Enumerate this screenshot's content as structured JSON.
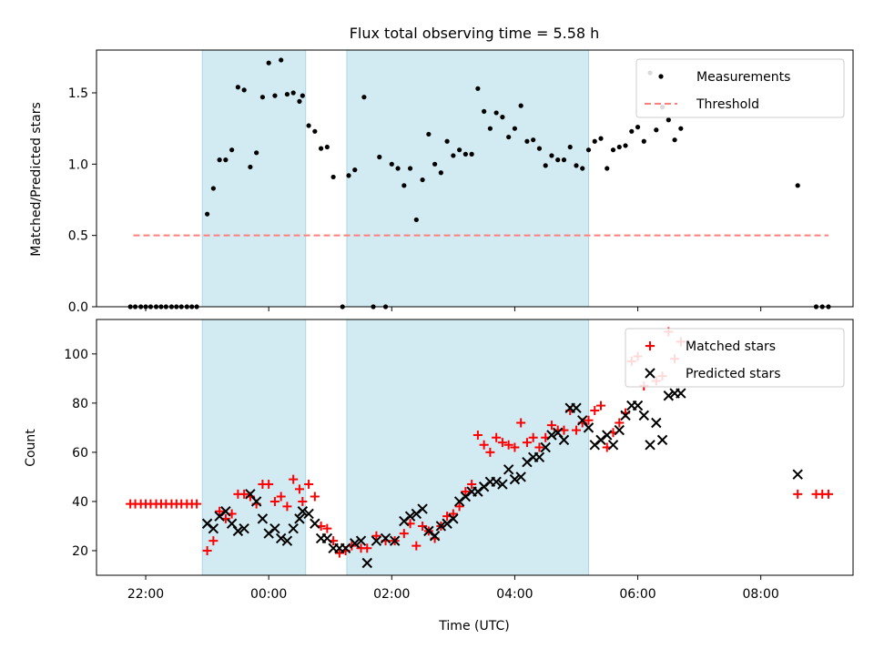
{
  "title": "Flux total observing time = 5.58 h",
  "xlabel": "Time (UTC)",
  "x_tick_labels": [
    "22:00",
    "00:00",
    "02:00",
    "04:00",
    "06:00",
    "08:00"
  ],
  "colors": {
    "band": "#add8e6",
    "measurement": "#000000",
    "threshold": "#ff7f7f",
    "matched": "#ff0000",
    "predicted": "#000000"
  },
  "chart_data": [
    {
      "type": "scatter",
      "ylabel": "Matched/Predicted stars",
      "x_unit": "hours since 22:00 UTC",
      "xlim": [
        -0.8,
        11.5
      ],
      "ylim": [
        0,
        1.8
      ],
      "yticks": [
        0.0,
        0.5,
        1.0,
        1.5
      ],
      "ytick_labels": [
        "0.0",
        "0.5",
        "1.0",
        "1.5"
      ],
      "bands": [
        [
          0.92,
          2.6
        ],
        [
          3.27,
          7.2
        ]
      ],
      "legend": [
        "Measurements",
        "Threshold"
      ],
      "legend_position": "top-right",
      "threshold": {
        "name": "Threshold",
        "value": 0.5,
        "x_range": [
          -0.2,
          11.1
        ]
      },
      "series": [
        {
          "name": "Measurements",
          "marker": "dot",
          "points": [
            [
              -0.25,
              0
            ],
            [
              -0.17,
              0
            ],
            [
              -0.08,
              0
            ],
            [
              0.0,
              0
            ],
            [
              0.08,
              0
            ],
            [
              0.17,
              0
            ],
            [
              0.25,
              0
            ],
            [
              0.33,
              0
            ],
            [
              0.42,
              0
            ],
            [
              0.5,
              0
            ],
            [
              0.58,
              0
            ],
            [
              0.67,
              0
            ],
            [
              0.75,
              0
            ],
            [
              0.83,
              0
            ],
            [
              1.0,
              0.65
            ],
            [
              1.1,
              0.83
            ],
            [
              1.2,
              1.03
            ],
            [
              1.3,
              1.03
            ],
            [
              1.4,
              1.1
            ],
            [
              1.5,
              1.54
            ],
            [
              1.6,
              1.52
            ],
            [
              1.7,
              0.98
            ],
            [
              1.8,
              1.08
            ],
            [
              1.9,
              1.47
            ],
            [
              2.0,
              1.71
            ],
            [
              2.1,
              1.48
            ],
            [
              2.2,
              1.73
            ],
            [
              2.3,
              1.49
            ],
            [
              2.4,
              1.5
            ],
            [
              2.5,
              1.44
            ],
            [
              2.55,
              1.48
            ],
            [
              2.65,
              1.27
            ],
            [
              2.75,
              1.23
            ],
            [
              2.85,
              1.11
            ],
            [
              2.95,
              1.12
            ],
            [
              3.05,
              0.91
            ],
            [
              3.2,
              0.0
            ],
            [
              3.3,
              0.92
            ],
            [
              3.4,
              0.96
            ],
            [
              3.55,
              1.47
            ],
            [
              3.7,
              0.0
            ],
            [
              3.8,
              1.05
            ],
            [
              3.9,
              0.0
            ],
            [
              4.0,
              1.0
            ],
            [
              4.1,
              0.97
            ],
            [
              4.2,
              0.85
            ],
            [
              4.3,
              0.97
            ],
            [
              4.4,
              0.61
            ],
            [
              4.5,
              0.89
            ],
            [
              4.6,
              1.21
            ],
            [
              4.7,
              1.0
            ],
            [
              4.8,
              0.94
            ],
            [
              4.9,
              1.16
            ],
            [
              5.0,
              1.06
            ],
            [
              5.1,
              1.1
            ],
            [
              5.2,
              1.07
            ],
            [
              5.3,
              1.07
            ],
            [
              5.4,
              1.53
            ],
            [
              5.5,
              1.37
            ],
            [
              5.6,
              1.25
            ],
            [
              5.7,
              1.36
            ],
            [
              5.8,
              1.33
            ],
            [
              5.9,
              1.19
            ],
            [
              6.0,
              1.25
            ],
            [
              6.1,
              1.41
            ],
            [
              6.2,
              1.16
            ],
            [
              6.3,
              1.17
            ],
            [
              6.4,
              1.11
            ],
            [
              6.5,
              0.99
            ],
            [
              6.6,
              1.06
            ],
            [
              6.7,
              1.03
            ],
            [
              6.8,
              1.03
            ],
            [
              6.9,
              1.12
            ],
            [
              7.0,
              0.99
            ],
            [
              7.1,
              0.97
            ],
            [
              7.2,
              1.1
            ],
            [
              7.3,
              1.16
            ],
            [
              7.4,
              1.18
            ],
            [
              7.5,
              0.97
            ],
            [
              7.6,
              1.1
            ],
            [
              7.7,
              1.12
            ],
            [
              7.8,
              1.13
            ],
            [
              7.9,
              1.23
            ],
            [
              8.0,
              1.26
            ],
            [
              8.1,
              1.16
            ],
            [
              8.2,
              1.64
            ],
            [
              8.3,
              1.24
            ],
            [
              8.4,
              1.4
            ],
            [
              8.5,
              1.31
            ],
            [
              8.6,
              1.17
            ],
            [
              8.7,
              1.25
            ],
            [
              10.6,
              0.85
            ],
            [
              10.9,
              0.0
            ],
            [
              11.0,
              0.0
            ],
            [
              11.1,
              0.0
            ]
          ]
        }
      ]
    },
    {
      "type": "scatter",
      "ylabel": "Count",
      "x_unit": "hours since 22:00 UTC",
      "xlim": [
        -0.8,
        11.5
      ],
      "ylim": [
        10,
        114
      ],
      "yticks": [
        20,
        40,
        60,
        80,
        100
      ],
      "ytick_labels": [
        "20",
        "40",
        "60",
        "80",
        "100"
      ],
      "bands": [
        [
          0.92,
          2.6
        ],
        [
          3.27,
          7.2
        ]
      ],
      "legend": [
        "Matched stars",
        "Predicted stars"
      ],
      "legend_position": "top-right",
      "series": [
        {
          "name": "Matched stars",
          "marker": "plus",
          "points": [
            [
              -0.25,
              39
            ],
            [
              -0.17,
              39
            ],
            [
              -0.08,
              39
            ],
            [
              0.0,
              39
            ],
            [
              0.08,
              39
            ],
            [
              0.17,
              39
            ],
            [
              0.25,
              39
            ],
            [
              0.33,
              39
            ],
            [
              0.42,
              39
            ],
            [
              0.5,
              39
            ],
            [
              0.58,
              39
            ],
            [
              0.67,
              39
            ],
            [
              0.75,
              39
            ],
            [
              0.83,
              39
            ],
            [
              1.0,
              20
            ],
            [
              1.1,
              24
            ],
            [
              1.2,
              36
            ],
            [
              1.3,
              33
            ],
            [
              1.4,
              35
            ],
            [
              1.5,
              43
            ],
            [
              1.6,
              43
            ],
            [
              1.7,
              42
            ],
            [
              1.8,
              39
            ],
            [
              1.9,
              47
            ],
            [
              2.0,
              47
            ],
            [
              2.1,
              40
            ],
            [
              2.2,
              42
            ],
            [
              2.3,
              38
            ],
            [
              2.4,
              49
            ],
            [
              2.5,
              45
            ],
            [
              2.55,
              40
            ],
            [
              2.65,
              47
            ],
            [
              2.75,
              42
            ],
            [
              2.85,
              30
            ],
            [
              2.95,
              29
            ],
            [
              3.05,
              24
            ],
            [
              3.15,
              19
            ],
            [
              3.25,
              20
            ],
            [
              3.35,
              22
            ],
            [
              3.5,
              21
            ],
            [
              3.6,
              21
            ],
            [
              3.75,
              26
            ],
            [
              3.9,
              24
            ],
            [
              4.05,
              24
            ],
            [
              4.2,
              27
            ],
            [
              4.3,
              31
            ],
            [
              4.4,
              22
            ],
            [
              4.5,
              30
            ],
            [
              4.6,
              28
            ],
            [
              4.7,
              25
            ],
            [
              4.8,
              30
            ],
            [
              4.9,
              34
            ],
            [
              5.0,
              35
            ],
            [
              5.1,
              38
            ],
            [
              5.2,
              44
            ],
            [
              5.3,
              47
            ],
            [
              5.4,
              67
            ],
            [
              5.5,
              63
            ],
            [
              5.6,
              60
            ],
            [
              5.7,
              66
            ],
            [
              5.8,
              64
            ],
            [
              5.9,
              63
            ],
            [
              6.0,
              62
            ],
            [
              6.1,
              72
            ],
            [
              6.2,
              64
            ],
            [
              6.3,
              66
            ],
            [
              6.4,
              62
            ],
            [
              6.5,
              66
            ],
            [
              6.6,
              71
            ],
            [
              6.7,
              69
            ],
            [
              6.8,
              69
            ],
            [
              6.9,
              77
            ],
            [
              7.0,
              69
            ],
            [
              7.1,
              72
            ],
            [
              7.2,
              73
            ],
            [
              7.3,
              77
            ],
            [
              7.4,
              79
            ],
            [
              7.5,
              62
            ],
            [
              7.6,
              68
            ],
            [
              7.7,
              72
            ],
            [
              7.8,
              76
            ],
            [
              7.9,
              97
            ],
            [
              8.0,
              99
            ],
            [
              8.1,
              87
            ],
            [
              8.2,
              103
            ],
            [
              8.3,
              89
            ],
            [
              8.4,
              91
            ],
            [
              8.5,
              109
            ],
            [
              8.6,
              98
            ],
            [
              8.7,
              105
            ],
            [
              10.6,
              43
            ],
            [
              10.9,
              43
            ],
            [
              11.0,
              43
            ],
            [
              11.1,
              43
            ]
          ]
        },
        {
          "name": "Predicted stars",
          "marker": "x",
          "points": [
            [
              1.0,
              31
            ],
            [
              1.1,
              29
            ],
            [
              1.2,
              34
            ],
            [
              1.3,
              36
            ],
            [
              1.4,
              31
            ],
            [
              1.5,
              28
            ],
            [
              1.6,
              29
            ],
            [
              1.7,
              43
            ],
            [
              1.8,
              40
            ],
            [
              1.9,
              33
            ],
            [
              2.0,
              27
            ],
            [
              2.1,
              29
            ],
            [
              2.2,
              25
            ],
            [
              2.3,
              24
            ],
            [
              2.4,
              29
            ],
            [
              2.5,
              33
            ],
            [
              2.55,
              36
            ],
            [
              2.65,
              35
            ],
            [
              2.75,
              31
            ],
            [
              2.85,
              25
            ],
            [
              2.95,
              25
            ],
            [
              3.05,
              21
            ],
            [
              3.15,
              21
            ],
            [
              3.25,
              21
            ],
            [
              3.4,
              23
            ],
            [
              3.5,
              24
            ],
            [
              3.6,
              15
            ],
            [
              3.75,
              24
            ],
            [
              3.9,
              25
            ],
            [
              4.05,
              24
            ],
            [
              4.2,
              32
            ],
            [
              4.3,
              34
            ],
            [
              4.4,
              35
            ],
            [
              4.5,
              37
            ],
            [
              4.6,
              28
            ],
            [
              4.7,
              26
            ],
            [
              4.8,
              30
            ],
            [
              4.9,
              31
            ],
            [
              5.0,
              33
            ],
            [
              5.1,
              40
            ],
            [
              5.2,
              42
            ],
            [
              5.3,
              44
            ],
            [
              5.4,
              44
            ],
            [
              5.5,
              46
            ],
            [
              5.6,
              48
            ],
            [
              5.7,
              48
            ],
            [
              5.8,
              47
            ],
            [
              5.9,
              53
            ],
            [
              6.0,
              49
            ],
            [
              6.1,
              50
            ],
            [
              6.2,
              56
            ],
            [
              6.3,
              58
            ],
            [
              6.4,
              58
            ],
            [
              6.5,
              62
            ],
            [
              6.6,
              67
            ],
            [
              6.7,
              68
            ],
            [
              6.8,
              65
            ],
            [
              6.9,
              78
            ],
            [
              7.0,
              78
            ],
            [
              7.1,
              73
            ],
            [
              7.2,
              70
            ],
            [
              7.3,
              63
            ],
            [
              7.4,
              65
            ],
            [
              7.5,
              67
            ],
            [
              7.6,
              63
            ],
            [
              7.7,
              69
            ],
            [
              7.8,
              75
            ],
            [
              7.9,
              79
            ],
            [
              8.0,
              79
            ],
            [
              8.1,
              75
            ],
            [
              8.2,
              63
            ],
            [
              8.3,
              72
            ],
            [
              8.4,
              65
            ],
            [
              8.5,
              83
            ],
            [
              8.6,
              84
            ],
            [
              8.7,
              84
            ],
            [
              10.6,
              51
            ]
          ]
        }
      ]
    }
  ]
}
